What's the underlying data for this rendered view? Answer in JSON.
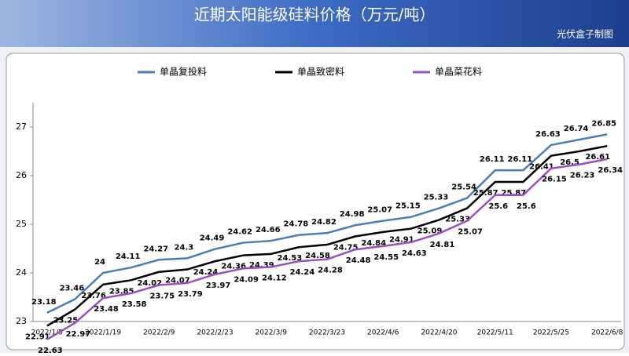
{
  "chart_data": {
    "type": "line",
    "title": "近期太阳能级硅料价格（万元/吨）",
    "source": "光伏盒子制图",
    "categories": [
      "2022/1/5",
      null,
      "2022/1/19",
      null,
      "2022/2/9",
      null,
      "2022/2/23",
      null,
      "2022/3/9",
      null,
      "2022/3/23",
      null,
      "2022/4/6",
      null,
      "2022/4/20",
      null,
      "2022/5/11",
      null,
      "2022/5/25",
      null,
      "2022/6/8"
    ],
    "series": [
      {
        "name": "单晶复投料",
        "color": "#4a7ebb",
        "values": [
          23.18,
          23.46,
          24,
          24.11,
          24.27,
          24.3,
          24.49,
          24.62,
          24.66,
          24.78,
          24.82,
          24.98,
          25.07,
          25.15,
          25.33,
          25.54,
          26.11,
          26.11,
          26.63,
          26.74,
          26.85
        ]
      },
      {
        "name": "单晶致密料",
        "color": "#000000",
        "values": [
          22.91,
          23.25,
          23.76,
          23.85,
          24.02,
          24.07,
          24.24,
          24.36,
          24.39,
          24.53,
          24.58,
          24.75,
          24.84,
          24.91,
          25.09,
          25.33,
          25.87,
          25.87,
          26.41,
          26.5,
          26.61
        ]
      },
      {
        "name": "单晶菜花料",
        "color": "#9b4fc4",
        "values": [
          22.63,
          22.97,
          23.48,
          23.58,
          23.75,
          23.79,
          23.97,
          24.09,
          24.12,
          24.24,
          24.28,
          24.48,
          24.55,
          24.63,
          24.81,
          25.07,
          25.6,
          25.6,
          26.15,
          26.23,
          26.34
        ]
      }
    ],
    "ylim": [
      23,
      27.5
    ],
    "yticks": [
      23,
      24,
      25,
      26,
      27
    ],
    "grid": false
  }
}
